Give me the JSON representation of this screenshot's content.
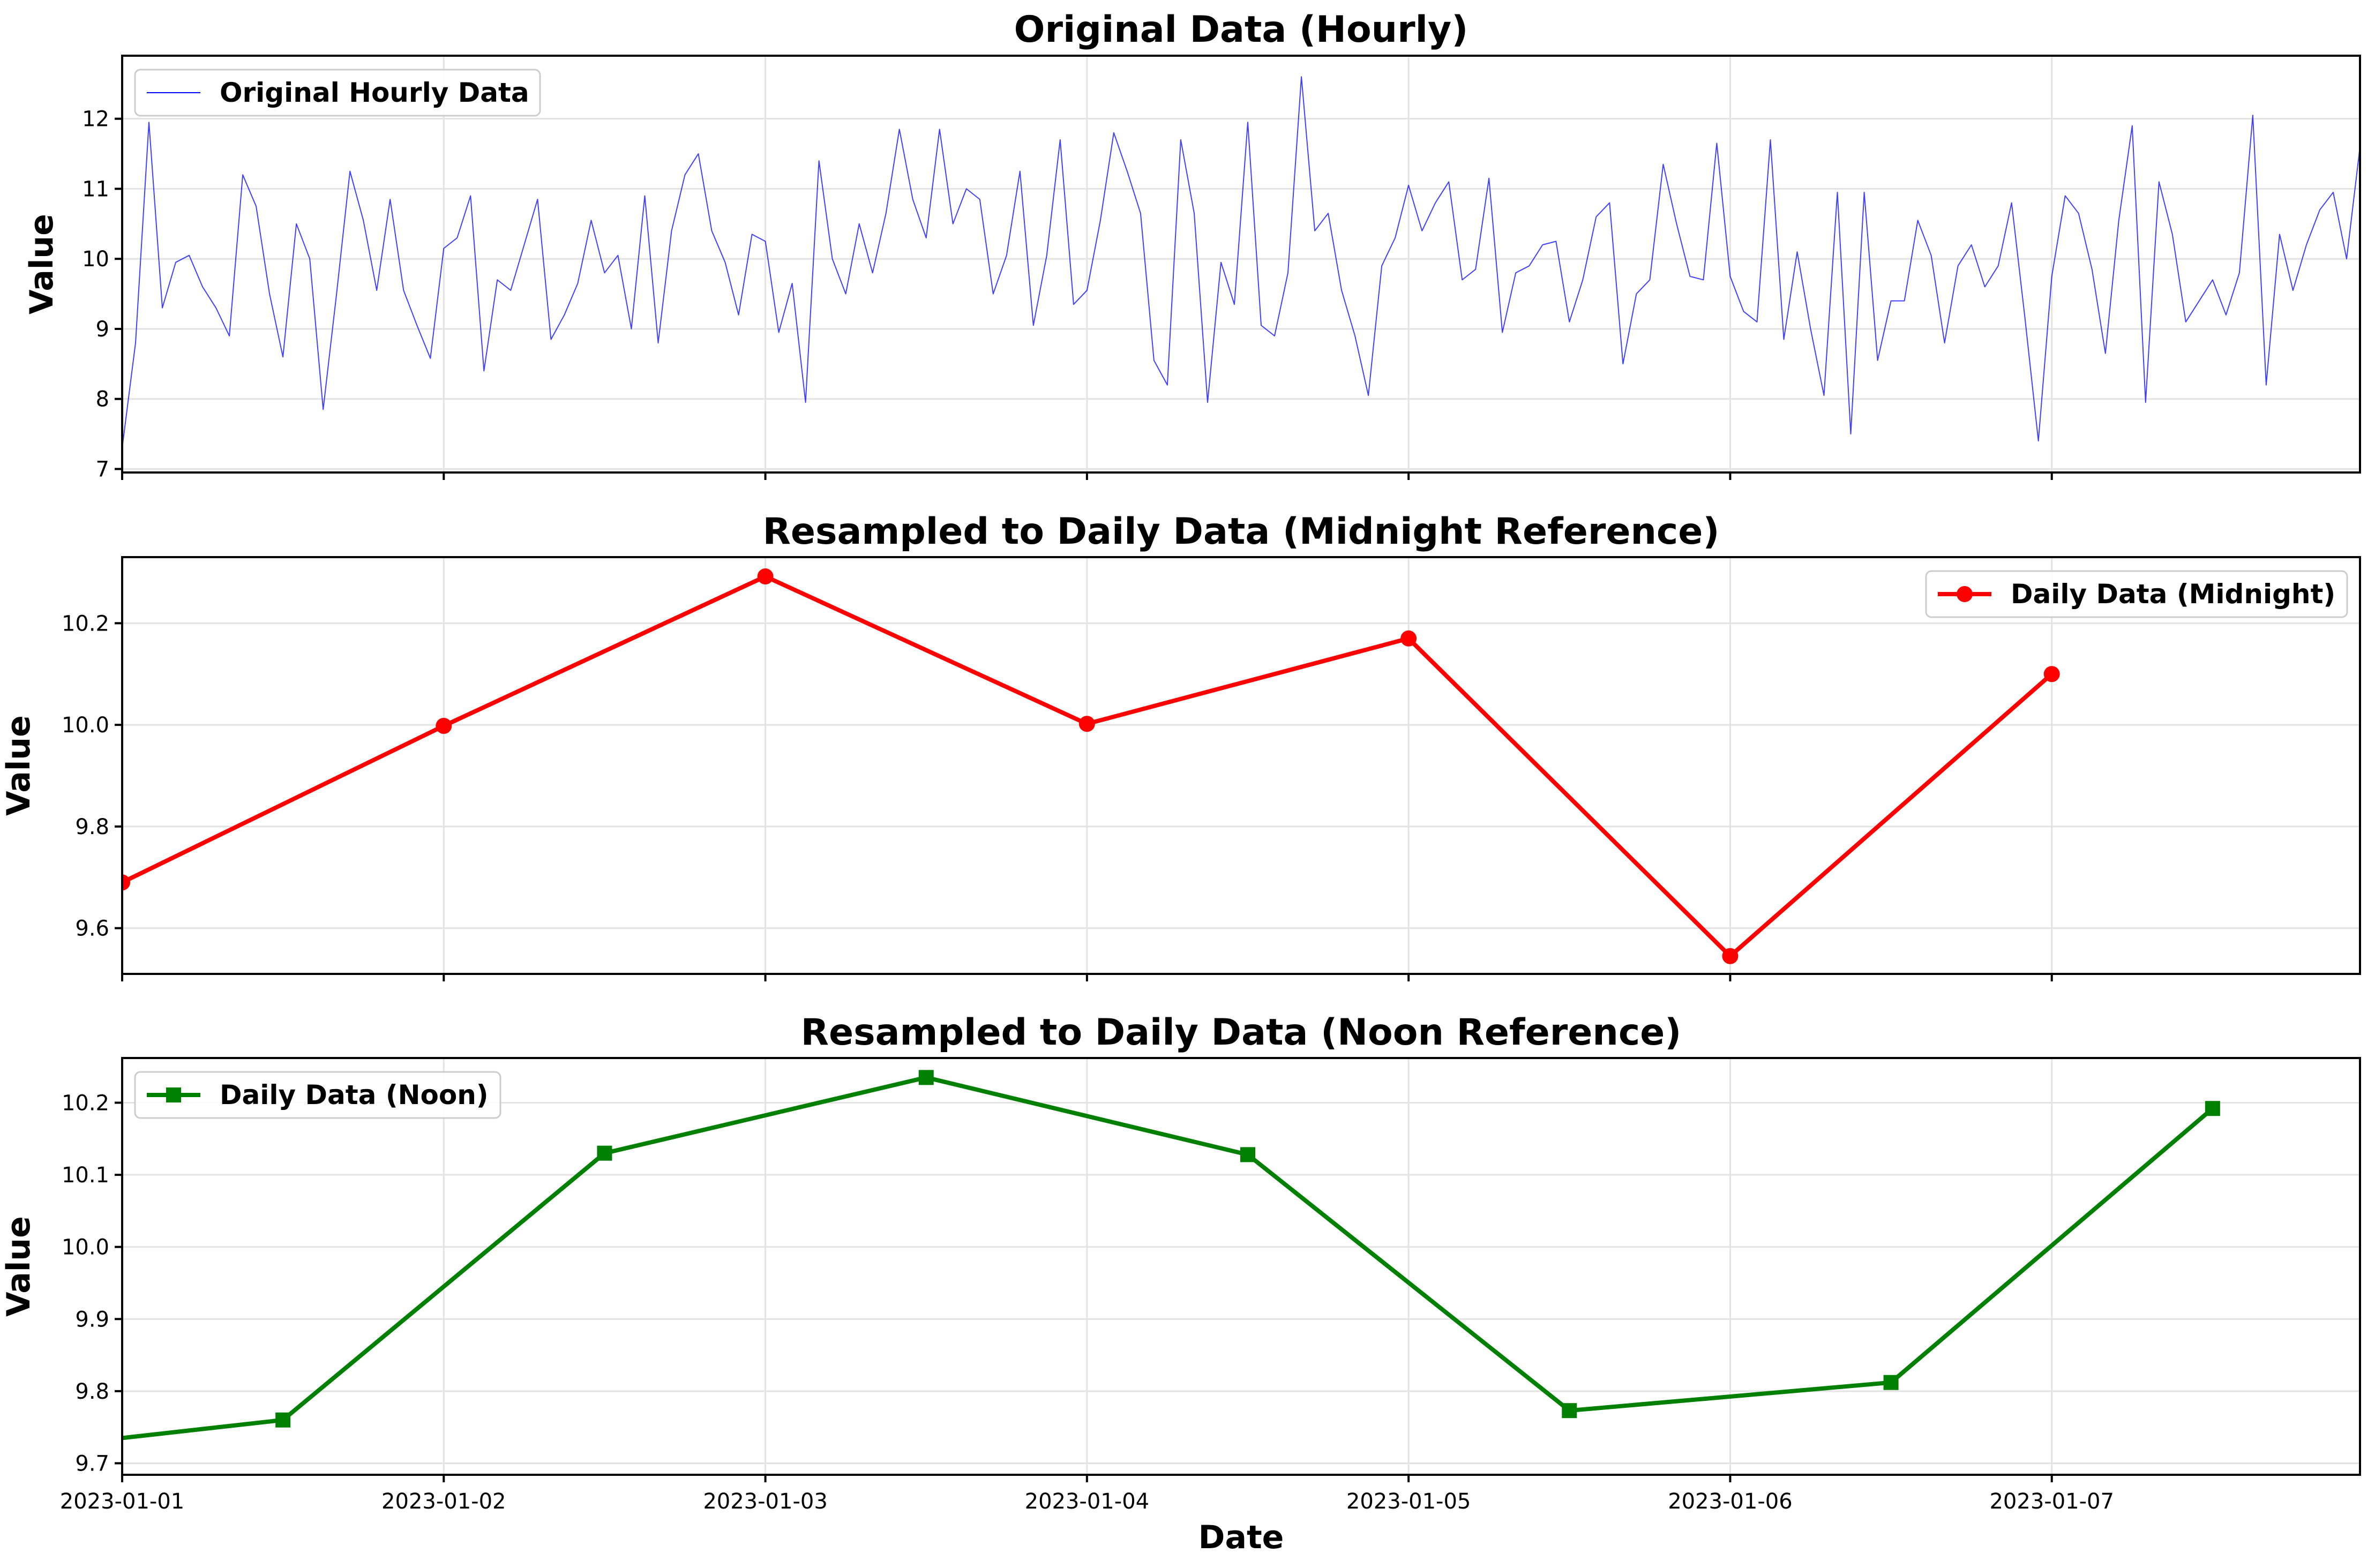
{
  "chart_data": [
    {
      "type": "line",
      "title": "Original Data (Hourly)",
      "xlabel": "",
      "ylabel": "Value",
      "xlim": [
        "2023-01-01 00:00",
        "2023-01-07 23:00"
      ],
      "ylim": [
        6.95,
        12.9
      ],
      "yticks": [
        "7",
        "8",
        "9",
        "10",
        "11",
        "12"
      ],
      "ytick_values": [
        7,
        8,
        9,
        10,
        11,
        12
      ],
      "xticks": [
        "2023-01-01",
        "2023-01-02",
        "2023-01-03",
        "2023-01-04",
        "2023-01-05",
        "2023-01-06",
        "2023-01-07"
      ],
      "xtick_labels_visible": false,
      "grid": true,
      "legend_position": "top-left",
      "x_start": "2023-01-01 00:00",
      "x_step": "1 hour",
      "series": [
        {
          "name": "Original Hourly Data",
          "color": "#0000ff",
          "marker": "none",
          "values": [
            7.3,
            8.8,
            11.95,
            9.3,
            9.95,
            10.05,
            9.6,
            9.3,
            8.9,
            11.2,
            10.75,
            9.5,
            8.6,
            10.5,
            10.0,
            7.85,
            9.5,
            11.25,
            10.55,
            9.55,
            10.85,
            9.55,
            9.05,
            8.58,
            10.15,
            10.3,
            10.9,
            8.4,
            9.7,
            9.55,
            10.2,
            10.85,
            8.85,
            9.2,
            9.65,
            10.55,
            9.8,
            10.05,
            9.0,
            10.9,
            8.8,
            10.4,
            11.2,
            11.5,
            10.4,
            9.95,
            9.2,
            10.35,
            10.25,
            8.95,
            9.65,
            7.95,
            11.4,
            10.0,
            9.5,
            10.5,
            9.8,
            10.65,
            11.85,
            10.85,
            10.3,
            11.85,
            10.5,
            11.0,
            10.85,
            9.5,
            10.05,
            11.25,
            9.05,
            10.05,
            11.7,
            9.35,
            9.55,
            10.55,
            11.8,
            11.25,
            10.65,
            8.55,
            8.2,
            11.7,
            10.65,
            7.95,
            9.95,
            9.35,
            11.95,
            9.05,
            8.9,
            9.8,
            12.6,
            10.4,
            10.65,
            9.55,
            8.9,
            8.05,
            9.9,
            10.3,
            11.05,
            10.4,
            10.8,
            11.1,
            9.7,
            9.85,
            11.15,
            8.95,
            9.8,
            9.9,
            10.2,
            10.25,
            9.1,
            9.7,
            10.6,
            10.8,
            8.5,
            9.5,
            9.7,
            11.35,
            10.5,
            9.75,
            9.7,
            11.65,
            9.75,
            9.25,
            9.1,
            11.7,
            8.85,
            10.1,
            9.0,
            8.05,
            10.95,
            7.5,
            10.95,
            8.55,
            9.4,
            9.4,
            10.55,
            10.05,
            8.8,
            9.9,
            10.2,
            9.6,
            9.9,
            10.8,
            9.15,
            7.4,
            9.75,
            10.9,
            10.65,
            9.85,
            8.65,
            10.55,
            11.9,
            7.95,
            11.1,
            10.35,
            9.1,
            9.4,
            9.7,
            9.2,
            9.8,
            12.05,
            8.2,
            10.35,
            9.55,
            10.2,
            10.7,
            10.95,
            10.0,
            11.6
          ]
        }
      ]
    },
    {
      "type": "line",
      "title": "Resampled to Daily Data (Midnight Reference)",
      "xlabel": "",
      "ylabel": "Value",
      "xlim": [
        "2023-01-01 00:00",
        "2023-01-07 23:00"
      ],
      "ylim": [
        9.51,
        10.33
      ],
      "yticks": [
        "9.6",
        "9.8",
        "10.0",
        "10.2"
      ],
      "ytick_values": [
        9.6,
        9.8,
        10.0,
        10.2
      ],
      "xticks": [
        "2023-01-01",
        "2023-01-02",
        "2023-01-03",
        "2023-01-04",
        "2023-01-05",
        "2023-01-06",
        "2023-01-07"
      ],
      "xtick_labels_visible": false,
      "grid": true,
      "legend_position": "top-right",
      "x": [
        "2023-01-01 00:00",
        "2023-01-02 00:00",
        "2023-01-03 00:00",
        "2023-01-04 00:00",
        "2023-01-05 00:00",
        "2023-01-06 00:00",
        "2023-01-07 00:00"
      ],
      "series": [
        {
          "name": "Daily Data (Midnight)",
          "color": "#ff0000",
          "marker": "circle",
          "values": [
            9.69,
            9.998,
            10.292,
            10.002,
            10.17,
            9.545,
            10.1
          ]
        }
      ]
    },
    {
      "type": "line",
      "title": "Resampled to Daily Data (Noon Reference)",
      "xlabel": "Date",
      "ylabel": "Value",
      "xlim": [
        "2023-01-01 00:00",
        "2023-01-07 23:00"
      ],
      "ylim": [
        9.684,
        10.262
      ],
      "yticks": [
        "9.7",
        "9.8",
        "9.9",
        "10.0",
        "10.1",
        "10.2"
      ],
      "ytick_values": [
        9.7,
        9.8,
        9.9,
        10.0,
        10.1,
        10.2
      ],
      "xticks": [
        "2023-01-01",
        "2023-01-02",
        "2023-01-03",
        "2023-01-04",
        "2023-01-05",
        "2023-01-06",
        "2023-01-07"
      ],
      "xtick_labels_visible": true,
      "grid": true,
      "legend_position": "top-left",
      "x": [
        "2022-12-31 12:00",
        "2023-01-01 12:00",
        "2023-01-02 12:00",
        "2023-01-03 12:00",
        "2023-01-04 12:00",
        "2023-01-05 12:00",
        "2023-01-06 12:00",
        "2023-01-07 12:00"
      ],
      "series": [
        {
          "name": "Daily Data (Noon)",
          "color": "#008000",
          "marker": "square",
          "values": [
            9.71,
            9.76,
            10.13,
            10.235,
            10.128,
            9.773,
            9.812,
            10.192
          ]
        }
      ]
    }
  ]
}
